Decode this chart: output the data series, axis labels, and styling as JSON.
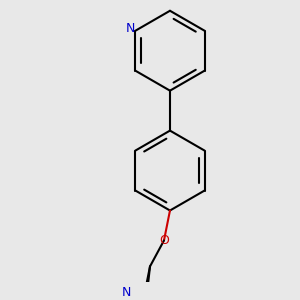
{
  "background_color": "#e8e8e8",
  "bond_color": "#000000",
  "n_color": "#0000cc",
  "o_color": "#cc0000",
  "bond_width": 1.5,
  "figsize": [
    3.0,
    3.0
  ],
  "dpi": 100,
  "xlim": [
    -2.5,
    2.5
  ],
  "ylim": [
    -3.8,
    3.2
  ]
}
